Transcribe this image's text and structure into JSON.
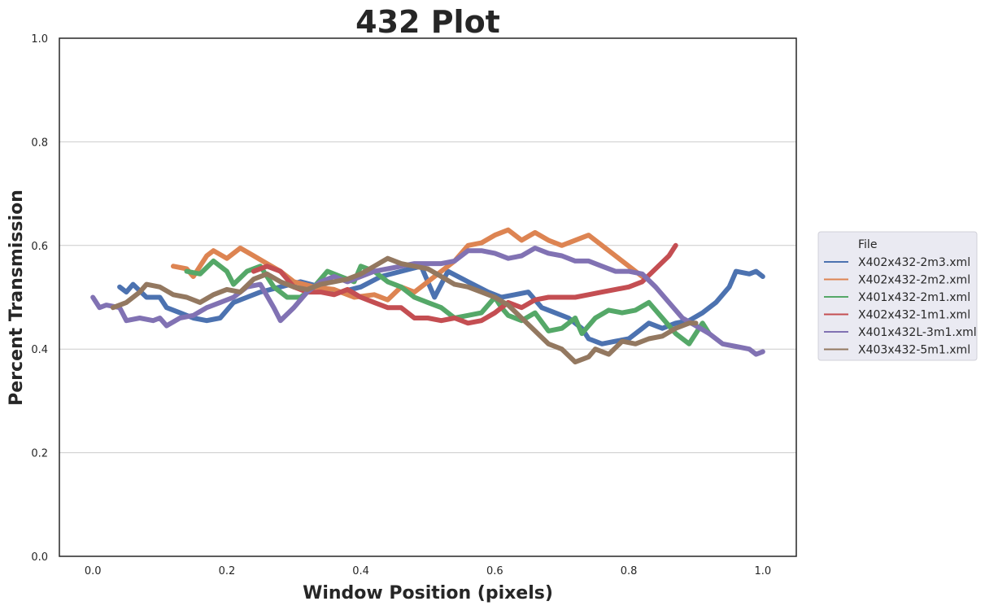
{
  "chart_data": {
    "type": "line",
    "title": "432 Plot",
    "xlabel": "Window Position (pixels)",
    "ylabel": "Percent Transmission",
    "xlim": [
      -0.05,
      1.05
    ],
    "ylim": [
      0.0,
      1.0
    ],
    "xticks": [
      "0.0",
      "0.2",
      "0.4",
      "0.6",
      "0.8",
      "1.0"
    ],
    "yticks": [
      "0.0",
      "0.2",
      "0.4",
      "0.6",
      "0.8",
      "1.0"
    ],
    "grid": "horizontal",
    "legend": {
      "title": "File",
      "placement": "right-outside"
    },
    "series": [
      {
        "name": "X402x432-2m3.xml",
        "color": "#4c72b0",
        "points": [
          [
            0.04,
            0.52
          ],
          [
            0.05,
            0.51
          ],
          [
            0.06,
            0.525
          ],
          [
            0.08,
            0.5
          ],
          [
            0.1,
            0.5
          ],
          [
            0.11,
            0.48
          ],
          [
            0.13,
            0.47
          ],
          [
            0.15,
            0.46
          ],
          [
            0.17,
            0.455
          ],
          [
            0.19,
            0.46
          ],
          [
            0.21,
            0.49
          ],
          [
            0.23,
            0.5
          ],
          [
            0.25,
            0.51
          ],
          [
            0.28,
            0.52
          ],
          [
            0.31,
            0.53
          ],
          [
            0.34,
            0.52
          ],
          [
            0.37,
            0.51
          ],
          [
            0.4,
            0.52
          ],
          [
            0.43,
            0.54
          ],
          [
            0.46,
            0.55
          ],
          [
            0.49,
            0.56
          ],
          [
            0.51,
            0.5
          ],
          [
            0.53,
            0.55
          ],
          [
            0.56,
            0.53
          ],
          [
            0.59,
            0.51
          ],
          [
            0.61,
            0.5
          ],
          [
            0.63,
            0.505
          ],
          [
            0.65,
            0.51
          ],
          [
            0.67,
            0.48
          ],
          [
            0.69,
            0.47
          ],
          [
            0.71,
            0.46
          ],
          [
            0.73,
            0.44
          ],
          [
            0.74,
            0.42
          ],
          [
            0.76,
            0.41
          ],
          [
            0.78,
            0.415
          ],
          [
            0.8,
            0.42
          ],
          [
            0.82,
            0.44
          ],
          [
            0.83,
            0.45
          ],
          [
            0.85,
            0.44
          ],
          [
            0.87,
            0.45
          ],
          [
            0.89,
            0.455
          ],
          [
            0.91,
            0.47
          ],
          [
            0.93,
            0.49
          ],
          [
            0.95,
            0.52
          ],
          [
            0.96,
            0.55
          ],
          [
            0.98,
            0.545
          ],
          [
            0.99,
            0.55
          ],
          [
            1.0,
            0.54
          ]
        ]
      },
      {
        "name": "X402x432-2m2.xml",
        "color": "#dd8452",
        "points": [
          [
            0.12,
            0.56
          ],
          [
            0.14,
            0.555
          ],
          [
            0.15,
            0.54
          ],
          [
            0.17,
            0.58
          ],
          [
            0.18,
            0.59
          ],
          [
            0.2,
            0.575
          ],
          [
            0.22,
            0.595
          ],
          [
            0.24,
            0.58
          ],
          [
            0.26,
            0.565
          ],
          [
            0.28,
            0.55
          ],
          [
            0.3,
            0.53
          ],
          [
            0.33,
            0.52
          ],
          [
            0.36,
            0.515
          ],
          [
            0.39,
            0.5
          ],
          [
            0.42,
            0.505
          ],
          [
            0.44,
            0.495
          ],
          [
            0.46,
            0.52
          ],
          [
            0.48,
            0.51
          ],
          [
            0.5,
            0.53
          ],
          [
            0.52,
            0.55
          ],
          [
            0.54,
            0.57
          ],
          [
            0.56,
            0.6
          ],
          [
            0.58,
            0.605
          ],
          [
            0.6,
            0.62
          ],
          [
            0.62,
            0.63
          ],
          [
            0.64,
            0.61
          ],
          [
            0.66,
            0.625
          ],
          [
            0.68,
            0.61
          ],
          [
            0.7,
            0.6
          ],
          [
            0.72,
            0.61
          ],
          [
            0.74,
            0.62
          ],
          [
            0.76,
            0.6
          ],
          [
            0.78,
            0.58
          ],
          [
            0.8,
            0.56
          ],
          [
            0.82,
            0.54
          ]
        ]
      },
      {
        "name": "X401x432-2m1.xml",
        "color": "#55a868",
        "points": [
          [
            0.14,
            0.55
          ],
          [
            0.16,
            0.545
          ],
          [
            0.18,
            0.57
          ],
          [
            0.2,
            0.55
          ],
          [
            0.21,
            0.525
          ],
          [
            0.23,
            0.55
          ],
          [
            0.25,
            0.56
          ],
          [
            0.27,
            0.52
          ],
          [
            0.29,
            0.5
          ],
          [
            0.31,
            0.5
          ],
          [
            0.33,
            0.52
          ],
          [
            0.35,
            0.55
          ],
          [
            0.37,
            0.54
          ],
          [
            0.39,
            0.53
          ],
          [
            0.4,
            0.56
          ],
          [
            0.42,
            0.55
          ],
          [
            0.44,
            0.53
          ],
          [
            0.46,
            0.52
          ],
          [
            0.48,
            0.5
          ],
          [
            0.5,
            0.49
          ],
          [
            0.52,
            0.48
          ],
          [
            0.54,
            0.46
          ],
          [
            0.56,
            0.465
          ],
          [
            0.58,
            0.47
          ],
          [
            0.6,
            0.5
          ],
          [
            0.61,
            0.48
          ],
          [
            0.62,
            0.465
          ],
          [
            0.64,
            0.455
          ],
          [
            0.66,
            0.47
          ],
          [
            0.68,
            0.435
          ],
          [
            0.7,
            0.44
          ],
          [
            0.72,
            0.46
          ],
          [
            0.73,
            0.43
          ],
          [
            0.75,
            0.46
          ],
          [
            0.77,
            0.475
          ],
          [
            0.79,
            0.47
          ],
          [
            0.81,
            0.475
          ],
          [
            0.83,
            0.49
          ],
          [
            0.85,
            0.46
          ],
          [
            0.87,
            0.43
          ],
          [
            0.89,
            0.41
          ],
          [
            0.91,
            0.45
          ],
          [
            0.92,
            0.43
          ]
        ]
      },
      {
        "name": "X402x432-1m1.xml",
        "color": "#c44e52",
        "points": [
          [
            0.24,
            0.55
          ],
          [
            0.26,
            0.56
          ],
          [
            0.28,
            0.55
          ],
          [
            0.3,
            0.52
          ],
          [
            0.32,
            0.51
          ],
          [
            0.34,
            0.51
          ],
          [
            0.36,
            0.505
          ],
          [
            0.38,
            0.515
          ],
          [
            0.4,
            0.5
          ],
          [
            0.42,
            0.49
          ],
          [
            0.44,
            0.48
          ],
          [
            0.46,
            0.48
          ],
          [
            0.48,
            0.46
          ],
          [
            0.5,
            0.46
          ],
          [
            0.52,
            0.455
          ],
          [
            0.54,
            0.46
          ],
          [
            0.56,
            0.45
          ],
          [
            0.58,
            0.455
          ],
          [
            0.6,
            0.47
          ],
          [
            0.62,
            0.49
          ],
          [
            0.64,
            0.48
          ],
          [
            0.66,
            0.495
          ],
          [
            0.68,
            0.5
          ],
          [
            0.7,
            0.5
          ],
          [
            0.72,
            0.5
          ],
          [
            0.74,
            0.505
          ],
          [
            0.76,
            0.51
          ],
          [
            0.78,
            0.515
          ],
          [
            0.8,
            0.52
          ],
          [
            0.82,
            0.53
          ],
          [
            0.84,
            0.555
          ],
          [
            0.86,
            0.58
          ],
          [
            0.87,
            0.6
          ]
        ]
      },
      {
        "name": "X401x432L-3m1.xml",
        "color": "#8172b3",
        "points": [
          [
            0.0,
            0.5
          ],
          [
            0.01,
            0.48
          ],
          [
            0.02,
            0.485
          ],
          [
            0.04,
            0.48
          ],
          [
            0.05,
            0.455
          ],
          [
            0.07,
            0.46
          ],
          [
            0.09,
            0.455
          ],
          [
            0.1,
            0.46
          ],
          [
            0.11,
            0.445
          ],
          [
            0.13,
            0.46
          ],
          [
            0.15,
            0.465
          ],
          [
            0.17,
            0.48
          ],
          [
            0.19,
            0.49
          ],
          [
            0.21,
            0.5
          ],
          [
            0.23,
            0.52
          ],
          [
            0.25,
            0.525
          ],
          [
            0.27,
            0.48
          ],
          [
            0.28,
            0.455
          ],
          [
            0.3,
            0.48
          ],
          [
            0.32,
            0.51
          ],
          [
            0.34,
            0.53
          ],
          [
            0.36,
            0.54
          ],
          [
            0.38,
            0.53
          ],
          [
            0.4,
            0.54
          ],
          [
            0.42,
            0.55
          ],
          [
            0.44,
            0.555
          ],
          [
            0.46,
            0.56
          ],
          [
            0.48,
            0.565
          ],
          [
            0.5,
            0.565
          ],
          [
            0.52,
            0.565
          ],
          [
            0.54,
            0.57
          ],
          [
            0.56,
            0.59
          ],
          [
            0.58,
            0.59
          ],
          [
            0.6,
            0.585
          ],
          [
            0.62,
            0.575
          ],
          [
            0.64,
            0.58
          ],
          [
            0.66,
            0.595
          ],
          [
            0.68,
            0.585
          ],
          [
            0.7,
            0.58
          ],
          [
            0.72,
            0.57
          ],
          [
            0.74,
            0.57
          ],
          [
            0.76,
            0.56
          ],
          [
            0.78,
            0.55
          ],
          [
            0.8,
            0.55
          ],
          [
            0.82,
            0.545
          ],
          [
            0.84,
            0.52
          ],
          [
            0.86,
            0.49
          ],
          [
            0.88,
            0.46
          ],
          [
            0.9,
            0.445
          ],
          [
            0.92,
            0.43
          ],
          [
            0.94,
            0.41
          ],
          [
            0.96,
            0.405
          ],
          [
            0.98,
            0.4
          ],
          [
            0.99,
            0.39
          ],
          [
            1.0,
            0.395
          ]
        ]
      },
      {
        "name": "X403x432-5m1.xml",
        "color": "#937860",
        "points": [
          [
            0.03,
            0.48
          ],
          [
            0.05,
            0.49
          ],
          [
            0.07,
            0.51
          ],
          [
            0.08,
            0.525
          ],
          [
            0.1,
            0.52
          ],
          [
            0.12,
            0.505
          ],
          [
            0.14,
            0.5
          ],
          [
            0.16,
            0.49
          ],
          [
            0.18,
            0.505
          ],
          [
            0.2,
            0.515
          ],
          [
            0.22,
            0.51
          ],
          [
            0.24,
            0.535
          ],
          [
            0.26,
            0.545
          ],
          [
            0.28,
            0.53
          ],
          [
            0.3,
            0.52
          ],
          [
            0.32,
            0.515
          ],
          [
            0.34,
            0.525
          ],
          [
            0.36,
            0.53
          ],
          [
            0.38,
            0.535
          ],
          [
            0.4,
            0.545
          ],
          [
            0.42,
            0.56
          ],
          [
            0.44,
            0.575
          ],
          [
            0.46,
            0.565
          ],
          [
            0.48,
            0.56
          ],
          [
            0.5,
            0.555
          ],
          [
            0.52,
            0.54
          ],
          [
            0.54,
            0.525
          ],
          [
            0.56,
            0.52
          ],
          [
            0.58,
            0.51
          ],
          [
            0.6,
            0.5
          ],
          [
            0.62,
            0.485
          ],
          [
            0.64,
            0.46
          ],
          [
            0.66,
            0.435
          ],
          [
            0.68,
            0.41
          ],
          [
            0.7,
            0.4
          ],
          [
            0.72,
            0.375
          ],
          [
            0.74,
            0.385
          ],
          [
            0.75,
            0.4
          ],
          [
            0.77,
            0.39
          ],
          [
            0.79,
            0.415
          ],
          [
            0.81,
            0.41
          ],
          [
            0.83,
            0.42
          ],
          [
            0.85,
            0.425
          ],
          [
            0.87,
            0.44
          ],
          [
            0.89,
            0.45
          ],
          [
            0.9,
            0.45
          ]
        ]
      }
    ]
  }
}
